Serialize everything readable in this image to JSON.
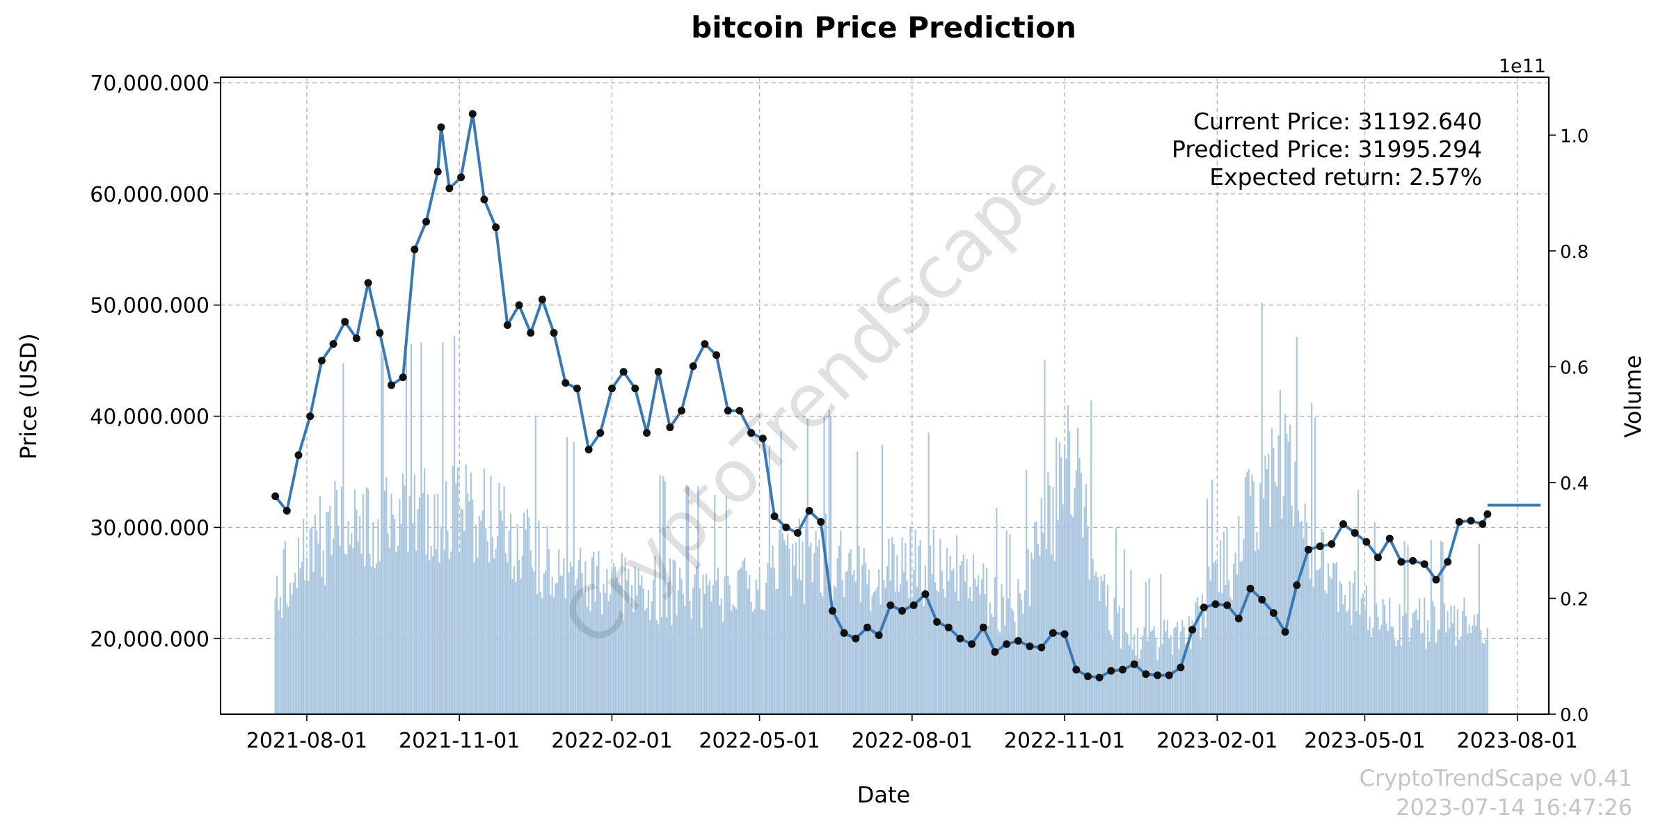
{
  "chart_data": {
    "type": "line",
    "title": "bitcoin Price Prediction",
    "xlabel": "Date",
    "ylabel": "Price (USD)",
    "y2label": "Volume",
    "y2_offset_label": "1e11",
    "x_range": [
      "2021-06-10",
      "2023-08-20"
    ],
    "ylim": [
      13200000,
      70500000
    ],
    "y2lim": [
      0,
      1.1
    ],
    "grid": true,
    "x_ticks": [
      "2021-08-01",
      "2021-11-01",
      "2022-02-01",
      "2022-05-01",
      "2022-08-01",
      "2022-11-01",
      "2023-02-01",
      "2023-05-01",
      "2023-08-01"
    ],
    "y_ticks": [
      20000000,
      30000000,
      40000000,
      50000000,
      60000000,
      70000000
    ],
    "y_tick_labels": [
      "20,000.000",
      "30,000.000",
      "40,000.000",
      "50,000.000",
      "60,000.000",
      "70,000.000"
    ],
    "y2_ticks": [
      0.0,
      0.2,
      0.4,
      0.6,
      0.8,
      1.0
    ],
    "y2_tick_labels": [
      "0.0",
      "0.2",
      "0.4",
      "0.6",
      "0.8",
      "1.0"
    ],
    "series": [
      {
        "name": "Price",
        "color": "#3a78b3",
        "x": [
          "2021-07-13",
          "2021-07-20",
          "2021-07-27",
          "2021-08-03",
          "2021-08-10",
          "2021-08-17",
          "2021-08-24",
          "2021-08-31",
          "2021-09-07",
          "2021-09-14",
          "2021-09-21",
          "2021-09-28",
          "2021-10-05",
          "2021-10-12",
          "2021-10-19",
          "2021-10-21",
          "2021-10-26",
          "2021-11-02",
          "2021-11-09",
          "2021-11-16",
          "2021-11-23",
          "2021-11-30",
          "2021-12-07",
          "2021-12-14",
          "2021-12-21",
          "2021-12-28",
          "2022-01-04",
          "2022-01-11",
          "2022-01-18",
          "2022-01-25",
          "2022-02-01",
          "2022-02-08",
          "2022-02-15",
          "2022-02-22",
          "2022-03-01",
          "2022-03-08",
          "2022-03-15",
          "2022-03-22",
          "2022-03-29",
          "2022-04-05",
          "2022-04-12",
          "2022-04-19",
          "2022-04-26",
          "2022-05-03",
          "2022-05-10",
          "2022-05-17",
          "2022-05-24",
          "2022-05-31",
          "2022-06-07",
          "2022-06-14",
          "2022-06-21",
          "2022-06-28",
          "2022-07-05",
          "2022-07-12",
          "2022-07-19",
          "2022-07-26",
          "2022-08-02",
          "2022-08-09",
          "2022-08-16",
          "2022-08-23",
          "2022-08-30",
          "2022-09-06",
          "2022-09-13",
          "2022-09-20",
          "2022-09-27",
          "2022-10-04",
          "2022-10-11",
          "2022-10-18",
          "2022-10-25",
          "2022-11-01",
          "2022-11-08",
          "2022-11-15",
          "2022-11-22",
          "2022-11-29",
          "2022-12-06",
          "2022-12-13",
          "2022-12-20",
          "2022-12-27",
          "2023-01-03",
          "2023-01-10",
          "2023-01-17",
          "2023-01-24",
          "2023-01-31",
          "2023-02-07",
          "2023-02-14",
          "2023-02-21",
          "2023-02-28",
          "2023-03-07",
          "2023-03-14",
          "2023-03-21",
          "2023-03-28",
          "2023-04-04",
          "2023-04-11",
          "2023-04-18",
          "2023-04-25",
          "2023-05-02",
          "2023-05-09",
          "2023-05-16",
          "2023-05-23",
          "2023-05-30",
          "2023-06-06",
          "2023-06-13",
          "2023-06-20",
          "2023-06-27",
          "2023-07-04",
          "2023-07-11",
          "2023-07-14"
        ],
        "y": [
          32800000,
          31500000,
          36500000,
          40000000,
          45000000,
          46500000,
          48500000,
          47000000,
          52000000,
          47500000,
          42800000,
          43500000,
          55000000,
          57500000,
          62000000,
          66000000,
          60500000,
          61500000,
          67200000,
          59500000,
          57000000,
          48200000,
          50000000,
          47500000,
          50500000,
          47500000,
          43000000,
          42500000,
          37000000,
          38500000,
          42500000,
          44000000,
          42500000,
          38500000,
          44000000,
          39000000,
          40500000,
          44500000,
          46500000,
          45500000,
          40500000,
          40500000,
          38500000,
          38000000,
          31000000,
          30000000,
          29500000,
          31500000,
          30500000,
          22500000,
          20500000,
          20000000,
          21000000,
          20300000,
          23000000,
          22500000,
          23000000,
          24000000,
          21500000,
          21000000,
          20000000,
          19500000,
          21000000,
          18800000,
          19500000,
          19800000,
          19300000,
          19200000,
          20500000,
          20400000,
          17200000,
          16600000,
          16500000,
          17100000,
          17200000,
          17700000,
          16800000,
          16700000,
          16700000,
          17400000,
          20800000,
          22800000,
          23100000,
          23000000,
          21800000,
          24500000,
          23500000,
          22300000,
          20600000,
          24800000,
          28000000,
          28300000,
          28500000,
          30300000,
          29500000,
          28700000,
          27300000,
          29000000,
          26900000,
          27000000,
          26700000,
          25300000,
          26900000,
          30500000,
          30600000,
          30300000,
          31192640
        ]
      },
      {
        "name": "Predicted",
        "color": "#3a78b3",
        "x": [
          "2023-07-14",
          "2023-08-15"
        ],
        "y": [
          31995294,
          31995294
        ]
      }
    ],
    "volume": {
      "color": "#a9c6de",
      "x_start": "2021-07-13",
      "x_end": "2023-07-14",
      "anchors": {
        "x": [
          "2021-07-13",
          "2021-08-15",
          "2021-10-01",
          "2021-11-15",
          "2021-12-15",
          "2022-01-20",
          "2022-03-01",
          "2022-04-15",
          "2022-05-10",
          "2022-06-13",
          "2022-07-01",
          "2022-08-01",
          "2022-09-01",
          "2022-10-01",
          "2022-11-09",
          "2022-11-20",
          "2022-12-15",
          "2023-01-15",
          "2023-02-10",
          "2023-03-13",
          "2023-03-25",
          "2023-04-15",
          "2023-05-15",
          "2023-06-20",
          "2023-07-14"
        ],
        "y": [
          0.22,
          0.32,
          0.34,
          0.36,
          0.28,
          0.24,
          0.22,
          0.2,
          0.26,
          0.28,
          0.24,
          0.26,
          0.26,
          0.16,
          0.5,
          0.22,
          0.12,
          0.14,
          0.28,
          0.46,
          0.3,
          0.24,
          0.16,
          0.16,
          0.16
        ]
      }
    },
    "annotations": [
      "Current Price: 31192.640",
      "Predicted Price: 31995.294",
      "Expected return: 2.57%"
    ],
    "watermark": "CryptoTrendScape"
  },
  "footer": {
    "version": "CryptoTrendScape v0.41",
    "timestamp": "2023-07-14 16:47:26"
  }
}
